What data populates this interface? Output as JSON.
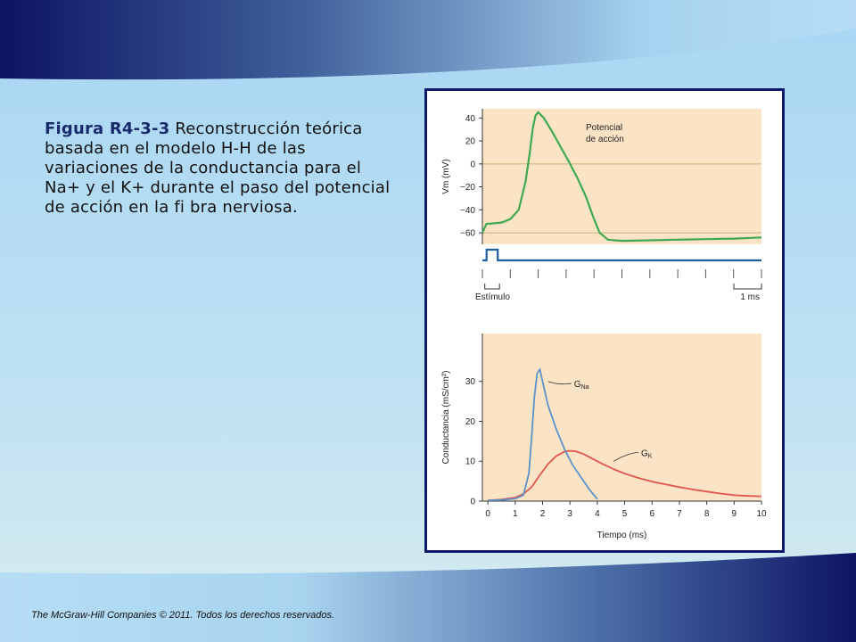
{
  "caption": {
    "label": "Figura R4-3-3",
    "text": "Reconstrucción teórica basada en el modelo H-H de las variaciones de la conductancia para el Na+ y el K+ durante el paso del potencial de acción en la fi bra nerviosa."
  },
  "footer": "The McGraw-Hill Companies © 2011. Todos los derechos reservados.",
  "colors": {
    "header_navy": "#0d1463",
    "page_light_blue": "#b2daf2",
    "frame_border": "#101a6a",
    "plot_bg": "#fbe3c6",
    "membrane_curve": "#3daa50",
    "stimulus_trace": "#1f5fa0",
    "gna_curve": "#5b93c8",
    "gk_curve": "#e2554d",
    "reference_line": "#c9b278"
  },
  "chart_data": [
    {
      "type": "line",
      "ylabel": "Vm (mV)",
      "yticks": [
        40,
        20,
        0,
        -20,
        -40,
        -60
      ],
      "ylim": [
        -70,
        48
      ],
      "xlim": [
        0,
        10
      ],
      "reference_lines": [
        0,
        -60
      ],
      "annotations": [
        "Potencial",
        "de acción"
      ],
      "series": [
        {
          "name": "Potencial de acción",
          "x": [
            0,
            0.15,
            0.3,
            0.7,
            1.0,
            1.3,
            1.55,
            1.7,
            1.8,
            1.9,
            2.0,
            2.2,
            2.5,
            2.8,
            3.1,
            3.4,
            3.7,
            4.0,
            4.2,
            4.5,
            5.0,
            6.0,
            7.0,
            8.0,
            9.0,
            10.0
          ],
          "y": [
            -60,
            -52,
            -52,
            -51,
            -48,
            -40,
            -15,
            10,
            30,
            42,
            45,
            40,
            28,
            15,
            2,
            -12,
            -28,
            -48,
            -60,
            -66,
            -67,
            -66.5,
            -66,
            -65.5,
            -65,
            -64
          ]
        }
      ],
      "stimulus": {
        "label": "Estímulo",
        "scale_label": "1 ms",
        "x_on": 0.15,
        "x_off": 0.55
      }
    },
    {
      "type": "line",
      "xlabel": "Tiempo (ms)",
      "ylabel": "Conductancia (mS/cm²)",
      "xticks": [
        0,
        1,
        2,
        3,
        4,
        5,
        6,
        7,
        8,
        9,
        10
      ],
      "yticks": [
        0,
        10,
        20,
        30
      ],
      "xlim": [
        -0.2,
        10
      ],
      "ylim": [
        0,
        42
      ],
      "series": [
        {
          "name": "GNa",
          "x": [
            0,
            0.5,
            1.0,
            1.3,
            1.5,
            1.6,
            1.7,
            1.8,
            1.9,
            2.0,
            2.2,
            2.5,
            2.8,
            3.1,
            3.4,
            3.7,
            4.0
          ],
          "y": [
            0.2,
            0.3,
            0.6,
            1.5,
            7,
            16,
            26,
            32,
            33,
            30,
            24,
            18,
            13,
            9,
            6,
            3,
            0.5
          ]
        },
        {
          "name": "GK",
          "x": [
            0,
            0.5,
            1.0,
            1.3,
            1.6,
            1.9,
            2.2,
            2.5,
            2.8,
            3.0,
            3.2,
            3.5,
            3.8,
            4.2,
            4.6,
            5.0,
            5.5,
            6.0,
            6.5,
            7.0,
            7.5,
            8.0,
            8.5,
            9.0,
            9.5,
            10.0
          ],
          "y": [
            0.2,
            0.4,
            0.9,
            1.8,
            3.5,
            6.5,
            9.3,
            11.3,
            12.4,
            12.6,
            12.5,
            11.8,
            10.7,
            9.3,
            8.0,
            6.9,
            5.8,
            4.9,
            4.2,
            3.5,
            2.9,
            2.4,
            1.9,
            1.5,
            1.3,
            1.2
          ]
        }
      ]
    }
  ]
}
